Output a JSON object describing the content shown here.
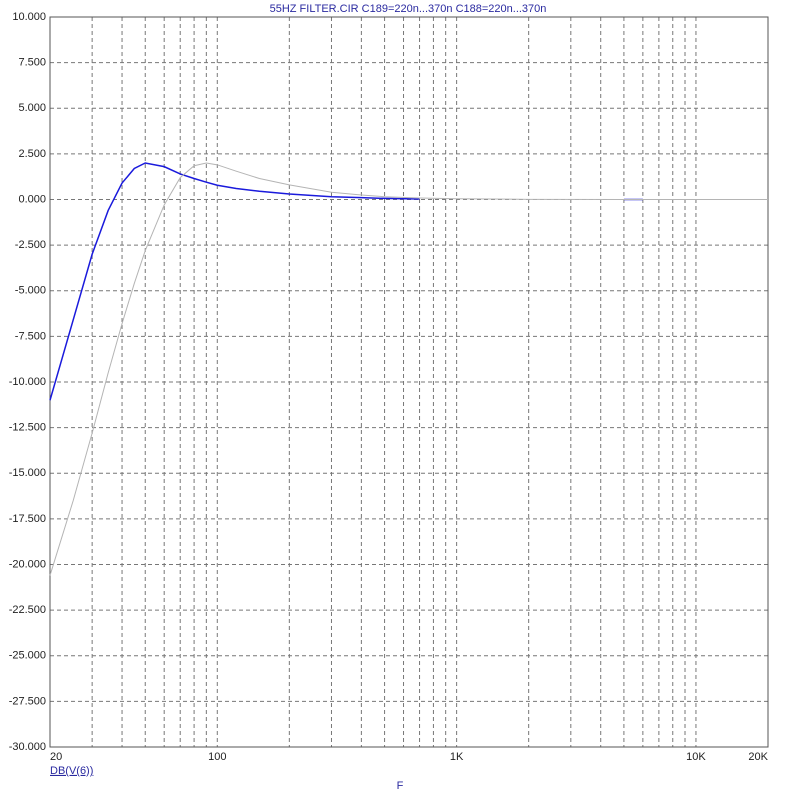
{
  "chart_data": {
    "type": "line",
    "title": "55HZ FILTER.CIR C189=220n...370n C188=220n...370n",
    "y_label": "DB(V(6))",
    "x_label": "F",
    "x_scale": "log",
    "grid": true,
    "x": [
      20,
      25,
      30,
      35,
      40,
      45,
      50,
      60,
      70,
      80,
      90,
      100,
      120,
      150,
      200,
      300,
      400,
      500,
      700,
      1000,
      2000,
      5000,
      6000,
      10000,
      20000
    ],
    "series": [
      {
        "color": "#1a1adc",
        "values": [
          -11,
          -6.6,
          -3.0,
          -0.6,
          0.9,
          1.7,
          2.0,
          1.8,
          1.4,
          1.15,
          0.95,
          0.78,
          0.6,
          0.45,
          0.3,
          0.15,
          0.1,
          0.06,
          0.03,
          null,
          null,
          0,
          0,
          null,
          null
        ]
      },
      {
        "color": "#b4b4b4",
        "values": [
          -20.6,
          -16.5,
          -12.8,
          -9.5,
          -6.8,
          -4.6,
          -2.8,
          -0.3,
          1.2,
          1.85,
          2.0,
          1.9,
          1.55,
          1.15,
          0.8,
          0.4,
          0.25,
          0.15,
          0.08,
          0.04,
          0.01,
          0,
          0,
          0,
          0
        ]
      }
    ],
    "xlim": [
      20,
      20000
    ],
    "xticks": [
      20,
      100,
      {
        "value": 1000,
        "label": "1K"
      },
      {
        "value": 10000,
        "label": "10K"
      },
      {
        "value": 20000,
        "label": "20K"
      }
    ],
    "xgrid_minor": [
      30,
      40,
      50,
      60,
      70,
      80,
      90,
      200,
      300,
      400,
      500,
      600,
      700,
      800,
      900,
      2000,
      3000,
      4000,
      5000,
      6000,
      7000,
      8000,
      9000
    ],
    "ylim": [
      -30,
      10
    ],
    "yticks": [
      {
        "value": 10,
        "label": "10.000"
      },
      {
        "value": 7.5,
        "label": "7.500"
      },
      {
        "value": 5,
        "label": "5.000"
      },
      {
        "value": 2.5,
        "label": "2.500"
      },
      {
        "value": 0,
        "label": "0.000"
      },
      {
        "value": -2.5,
        "label": "-2.500"
      },
      {
        "value": -5,
        "label": "-5.000"
      },
      {
        "value": -7.5,
        "label": "-7.500"
      },
      {
        "value": -10,
        "label": "-10.000"
      },
      {
        "value": -12.5,
        "label": "-12.500"
      },
      {
        "value": -15,
        "label": "-15.000"
      },
      {
        "value": -17.5,
        "label": "-17.500"
      },
      {
        "value": -20,
        "label": "-20.000"
      },
      {
        "value": -22.5,
        "label": "-22.500"
      },
      {
        "value": -25,
        "label": "-25.000"
      },
      {
        "value": -27.5,
        "label": "-27.500"
      },
      {
        "value": -30,
        "label": "-30.000"
      }
    ]
  }
}
